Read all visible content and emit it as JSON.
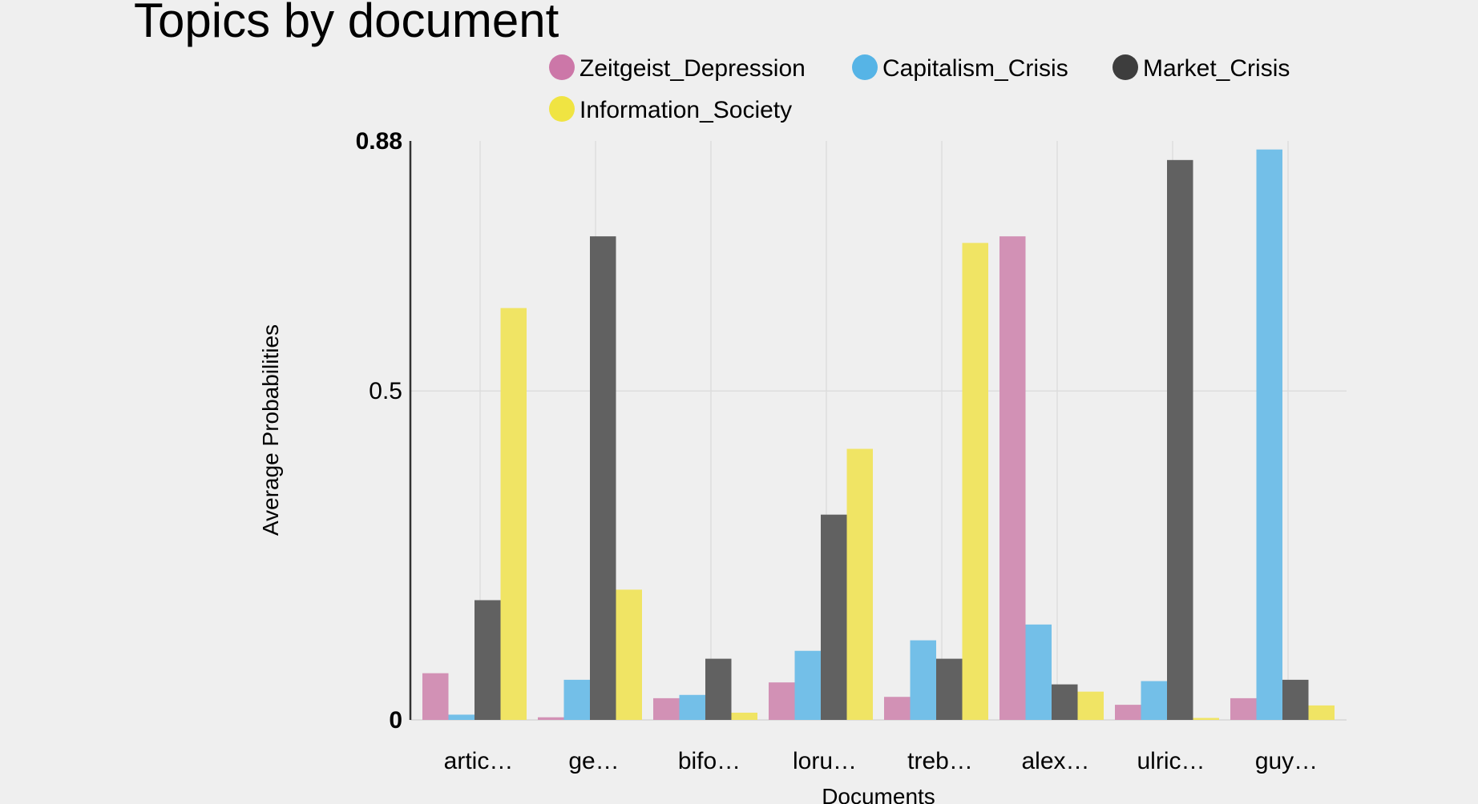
{
  "chart_data": {
    "type": "bar",
    "title": "Topics by document",
    "xlabel": "Documents",
    "ylabel": "Average Probabilities",
    "categories": [
      "artic…",
      "ge…",
      "bifo…",
      "loru…",
      "treb…",
      "alex…",
      "ulric…",
      "guy…"
    ],
    "series": [
      {
        "name": "Zeitgeist_Depression",
        "color": "#d291b5",
        "values": [
          0.071,
          0.004,
          0.033,
          0.057,
          0.035,
          0.735,
          0.023,
          0.033
        ]
      },
      {
        "name": "Capitalism_Crisis",
        "color": "#73bfe8",
        "values": [
          0.008,
          0.061,
          0.038,
          0.105,
          0.121,
          0.145,
          0.059,
          0.867
        ]
      },
      {
        "name": "Market_Crisis",
        "color": "#616161",
        "values": [
          0.182,
          0.735,
          0.093,
          0.312,
          0.093,
          0.054,
          0.851,
          0.061
        ]
      },
      {
        "name": "Information_Society",
        "color": "#f0e464",
        "values": [
          0.626,
          0.198,
          0.011,
          0.412,
          0.725,
          0.043,
          0.003,
          0.022
        ]
      }
    ],
    "ylim": [
      0,
      0.88
    ],
    "yticks": [
      {
        "value": 0,
        "label": "0",
        "bold": true
      },
      {
        "value": 0.5,
        "label": "0.5",
        "bold": false
      },
      {
        "value": 0.88,
        "label": "0.88",
        "bold": true
      }
    ],
    "legend_position": "top",
    "legend_marker_colors": [
      "#cc77a8",
      "#56b4e6",
      "#3d3d3d",
      "#f0e442"
    ],
    "grid": true,
    "background": "#efefef",
    "grid_color": "#dddddd",
    "axis_color": "#333333"
  }
}
